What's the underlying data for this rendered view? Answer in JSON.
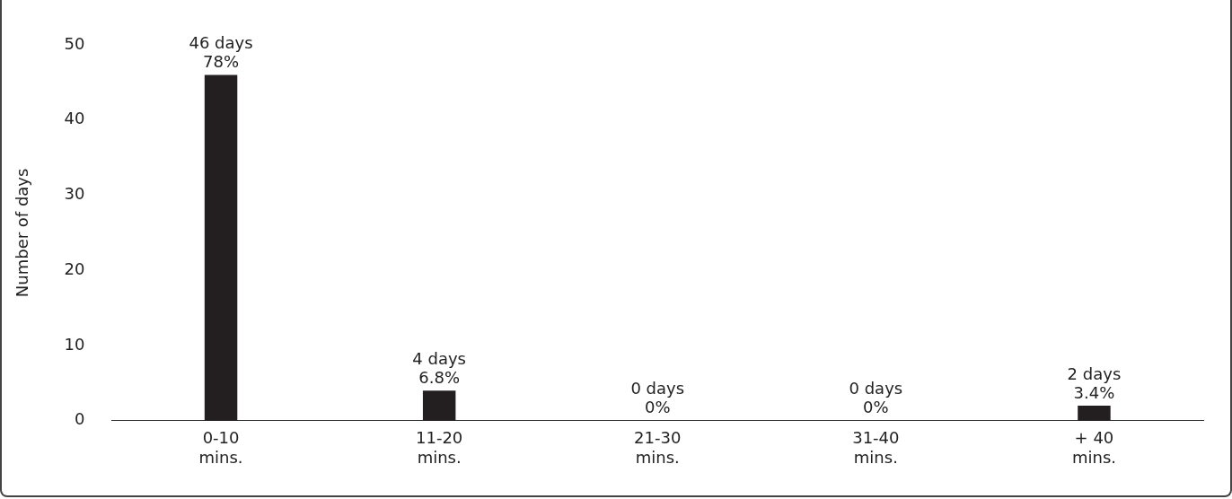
{
  "chart_data": {
    "type": "bar",
    "ylabel": "Number of days",
    "categories": [
      "0-10\nmins.",
      "11-20\nmins.",
      "21-30\nmins.",
      "31-40\nmins.",
      "+ 40\nmins."
    ],
    "values": [
      46,
      4,
      0,
      0,
      2
    ],
    "value_labels": [
      "46 days\n78%",
      "4 days\n6.8%",
      "0 days\n0%",
      "0 days\n0%",
      "2 days\n3.4%"
    ],
    "color": "#231f20",
    "ylim": [
      0,
      50
    ],
    "yticks": [
      0,
      10,
      20,
      30,
      40,
      50
    ],
    "grid": false,
    "legend": false
  }
}
